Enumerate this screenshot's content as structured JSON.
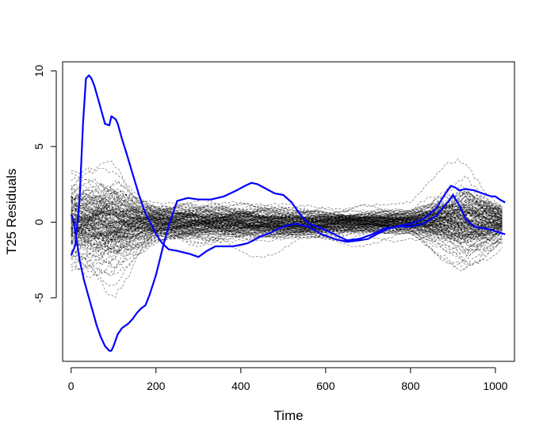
{
  "chart_data": {
    "type": "line",
    "title": "",
    "xlabel": "Time",
    "ylabel": "T25 Residuals",
    "xlim": [
      -20,
      1045
    ],
    "ylim": [
      -9.2,
      10.6
    ],
    "x_ticks": [
      0,
      200,
      400,
      600,
      800,
      1000
    ],
    "y_ticks": [
      -5,
      0,
      5,
      10
    ],
    "x_tick_labels": [
      "0",
      "200",
      "400",
      "600",
      "800",
      "1000"
    ],
    "y_tick_labels": [
      "-5",
      "0",
      "5",
      "10"
    ],
    "grid": false,
    "legend": "none",
    "background_curves": {
      "count": 150,
      "color": "#000000",
      "style": "dashed",
      "x_range": [
        0,
        1023
      ],
      "approx_envelope": [
        {
          "x": 0,
          "lo": -2.5,
          "hi": 4.5
        },
        {
          "x": 100,
          "lo": -5.5,
          "hi": 5.5
        },
        {
          "x": 200,
          "lo": -2.2,
          "hi": 2.2
        },
        {
          "x": 400,
          "lo": -2.8,
          "hi": 2.0
        },
        {
          "x": 600,
          "lo": -1.8,
          "hi": 2.0
        },
        {
          "x": 800,
          "lo": -1.5,
          "hi": 1.8
        },
        {
          "x": 900,
          "lo": -4.0,
          "hi": 5.0
        },
        {
          "x": 1023,
          "lo": -1.5,
          "hi": 1.5
        }
      ]
    },
    "series": [
      {
        "color": "#0000ff",
        "x": [
          0,
          10,
          20,
          28,
          35,
          42,
          48,
          55,
          65,
          80,
          90,
          95,
          100,
          105,
          110,
          120,
          130,
          145,
          160,
          175,
          190,
          200,
          215,
          230,
          250,
          280,
          300,
          320,
          340,
          360,
          380,
          400,
          415,
          430,
          450,
          470,
          490,
          510,
          530,
          560,
          590,
          620,
          650,
          680,
          700,
          720,
          750,
          780,
          800,
          830,
          860,
          880,
          895,
          905,
          915,
          930,
          950,
          970,
          990,
          1000,
          1010,
          1023
        ],
        "y": [
          -2.2,
          -1.5,
          1.5,
          6.5,
          9.5,
          9.7,
          9.5,
          9.0,
          8.0,
          6.5,
          6.4,
          7.0,
          6.9,
          6.8,
          6.5,
          5.5,
          4.6,
          3.2,
          1.8,
          0.6,
          -0.2,
          -0.8,
          -1.4,
          -1.8,
          -1.9,
          -2.1,
          -2.3,
          -1.9,
          -1.6,
          -1.6,
          -1.6,
          -1.5,
          -1.4,
          -1.2,
          -0.9,
          -0.7,
          -0.4,
          -0.2,
          -0.1,
          -0.3,
          -0.8,
          -1.1,
          -1.3,
          -1.2,
          -1.1,
          -0.8,
          -0.4,
          -0.2,
          -0.1,
          0.2,
          0.9,
          1.8,
          2.4,
          2.3,
          2.1,
          2.2,
          2.1,
          1.9,
          1.7,
          1.7,
          1.5,
          1.3
        ]
      },
      {
        "color": "#0000ff",
        "x": [
          0,
          5,
          12,
          20,
          30,
          40,
          50,
          60,
          70,
          80,
          90,
          95,
          100,
          110,
          120,
          130,
          135,
          145,
          155,
          165,
          175,
          185,
          200,
          215,
          230,
          250,
          275,
          300,
          330,
          360,
          390,
          410,
          425,
          440,
          460,
          480,
          500,
          520,
          540,
          560,
          590,
          620,
          650,
          680,
          710,
          740,
          770,
          800,
          830,
          860,
          890,
          900,
          915,
          930,
          950,
          970,
          990,
          1000,
          1010,
          1023
        ],
        "y": [
          0.5,
          0.2,
          -1.0,
          -2.5,
          -3.8,
          -4.8,
          -5.8,
          -6.8,
          -7.6,
          -8.2,
          -8.5,
          -8.5,
          -8.2,
          -7.4,
          -7.0,
          -6.8,
          -6.7,
          -6.4,
          -6.0,
          -5.7,
          -5.5,
          -4.8,
          -3.5,
          -1.8,
          -0.2,
          1.4,
          1.6,
          1.5,
          1.5,
          1.7,
          2.1,
          2.4,
          2.6,
          2.5,
          2.2,
          1.9,
          1.8,
          1.3,
          0.5,
          -0.1,
          -0.4,
          -0.8,
          -1.2,
          -1.1,
          -0.8,
          -0.4,
          -0.3,
          -0.3,
          -0.1,
          0.4,
          1.4,
          1.8,
          1.1,
          0.2,
          -0.3,
          -0.4,
          -0.5,
          -0.6,
          -0.7,
          -0.8
        ]
      }
    ]
  }
}
